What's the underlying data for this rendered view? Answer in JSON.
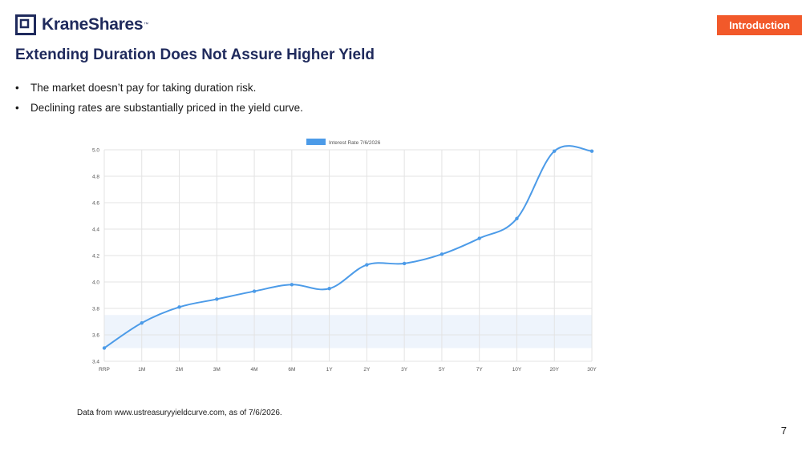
{
  "brand": {
    "name": "KraneShares",
    "tm": "™",
    "color": "#1f2a5c"
  },
  "section_tab": {
    "label": "Introduction",
    "color": "#f2592a"
  },
  "slide": {
    "title": "Extending Duration Does Not Assure Higher Yield",
    "bullets": [
      "The market doesn’t pay for taking duration risk.",
      "Declining rates are substantially priced in the yield curve."
    ],
    "source_note": "Data from www.ustreasuryyieldcurve.com, as of 7/6/2026.",
    "page_number": "7"
  },
  "chart_data": {
    "type": "line",
    "categories": [
      "RRP",
      "1M",
      "2M",
      "3M",
      "4M",
      "6M",
      "1Y",
      "2Y",
      "3Y",
      "5Y",
      "7Y",
      "10Y",
      "20Y",
      "30Y"
    ],
    "series": [
      {
        "name": "Interest Rate 7/6/2026",
        "color": "#4c9be8",
        "values": [
          3.5,
          3.69,
          3.81,
          3.87,
          3.93,
          3.98,
          3.95,
          4.13,
          4.14,
          4.21,
          4.33,
          4.48,
          4.99,
          4.99
        ]
      }
    ],
    "ylim": [
      3.4,
      5.0
    ],
    "yticks": [
      "3.4",
      "3.6",
      "3.8",
      "4.0",
      "4.2",
      "4.4",
      "4.6",
      "4.8",
      "5.0"
    ],
    "shaded_band": [
      3.5,
      3.75
    ],
    "legend_position": "top-center",
    "grid": true
  }
}
